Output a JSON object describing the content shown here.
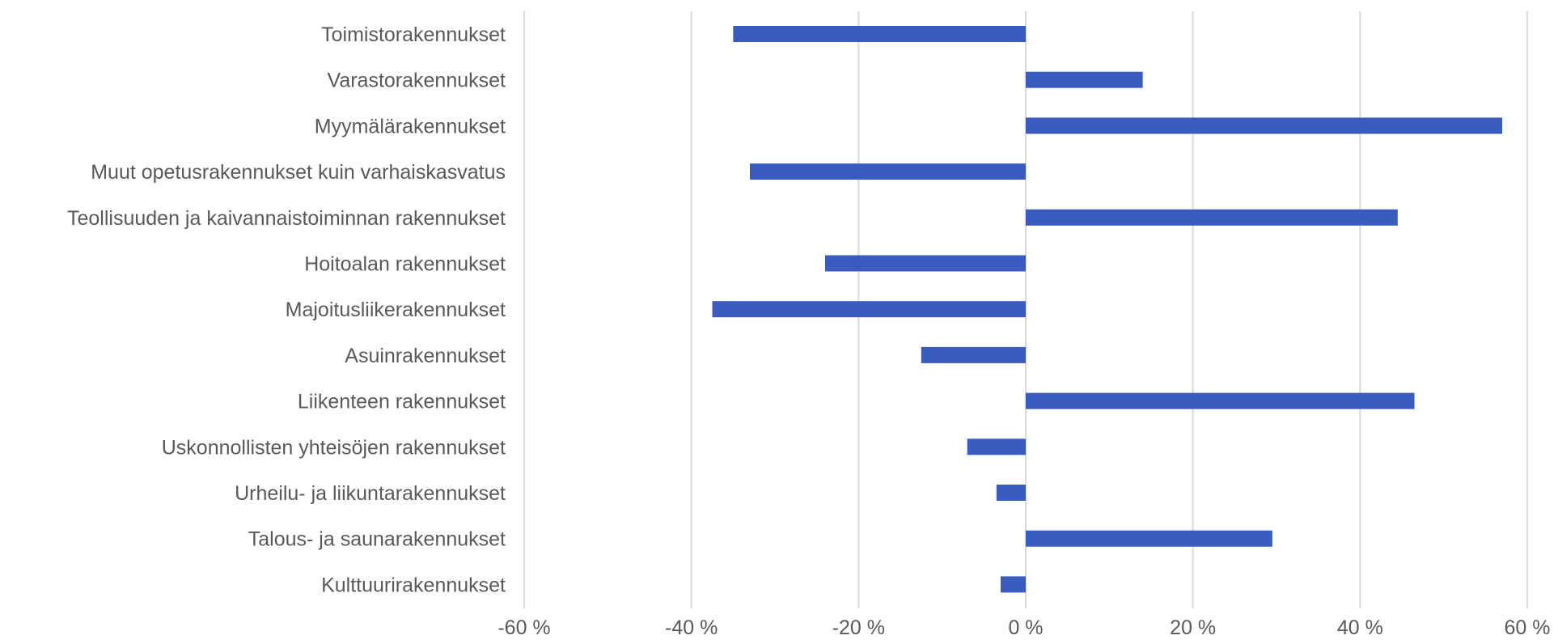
{
  "chart_data": {
    "type": "bar",
    "orientation": "horizontal",
    "categories": [
      "Toimistorakennukset",
      "Varastorakennukset",
      "Myymälärakennukset",
      "Muut opetusrakennukset kuin varhaiskasvatus",
      "Teollisuuden ja kaivannaistoiminnan rakennukset",
      "Hoitoalan rakennukset",
      "Majoitusliikerakennukset",
      "Asuinrakennukset",
      "Liikenteen rakennukset",
      "Uskonnollisten yhteisöjen rakennukset",
      "Urheilu- ja liikuntarakennukset",
      "Talous- ja saunarakennukset",
      "Kulttuurirakennukset"
    ],
    "values": [
      -35,
      14,
      57,
      -33,
      44.5,
      -24,
      -37.5,
      -12.5,
      46.5,
      -7,
      -3.5,
      29.5,
      -3
    ],
    "xlim": [
      -60,
      60
    ],
    "xticks": [
      -60,
      -40,
      -20,
      0,
      20,
      40,
      60
    ],
    "xtick_labels": [
      "-60 %",
      "-40 %",
      "-20 %",
      "0 %",
      "20 %",
      "40 %",
      "60 %"
    ],
    "grid": "vertical",
    "legend": "none",
    "title": "",
    "xlabel": "",
    "ylabel": "",
    "colors": {
      "bar": "#3a5bbf",
      "grid": "#d9d9d9",
      "text": "#595959"
    }
  }
}
